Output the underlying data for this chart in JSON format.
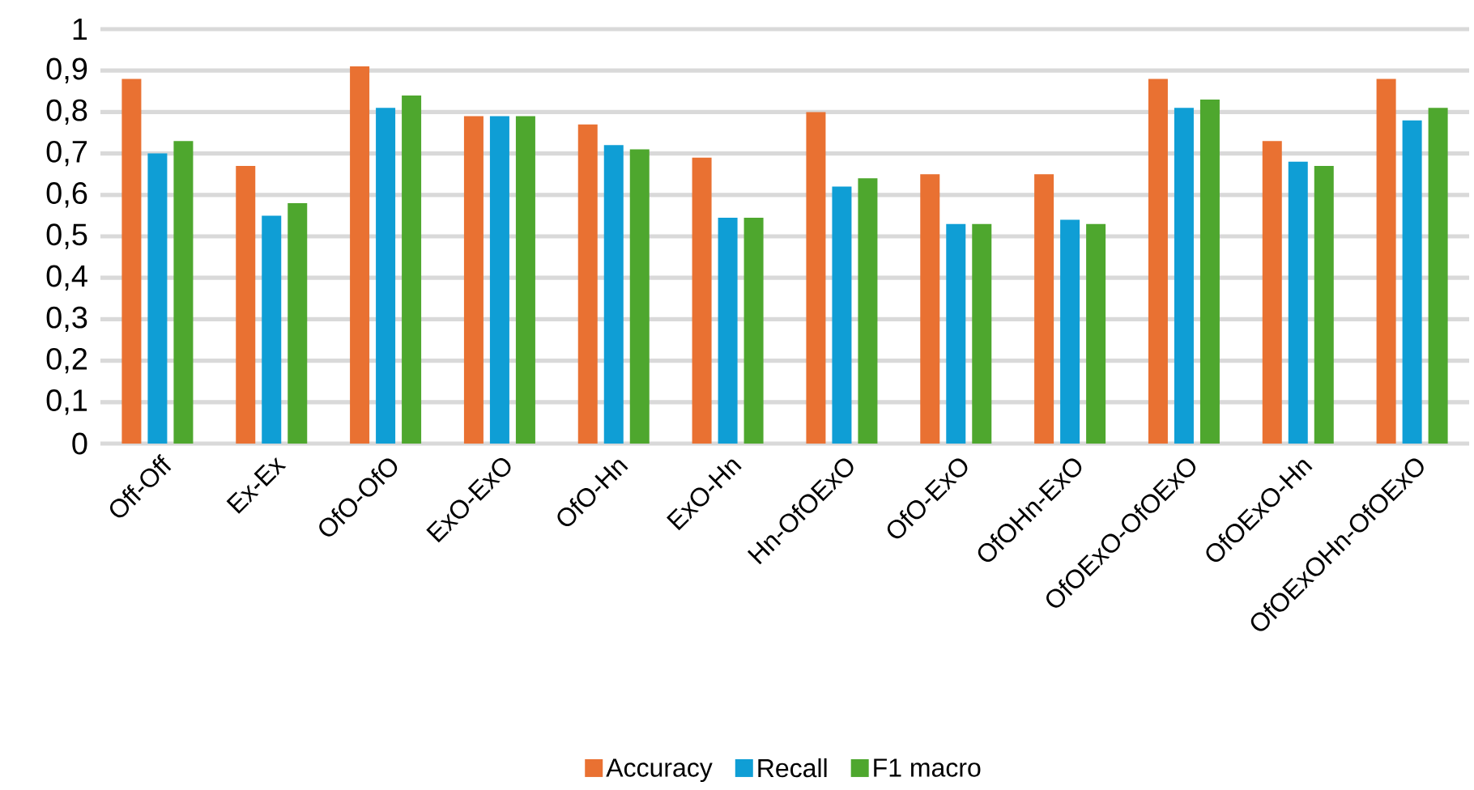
{
  "chart_data": {
    "type": "bar",
    "categories": [
      "Off-Off",
      "Ex-Ex",
      "OfO-OfO",
      "ExO-ExO",
      "OfO-Hn",
      "ExO-Hn",
      "Hn-OfOExO",
      "OfO-ExO",
      "OfOHn-ExO",
      "OfOExO-OfOExO",
      "OfOExO-Hn",
      "OfOExOHn-OfOExO"
    ],
    "series": [
      {
        "name": "Accuracy",
        "color": "#e97132",
        "values": [
          0.88,
          0.67,
          0.91,
          0.79,
          0.77,
          0.69,
          0.8,
          0.65,
          0.65,
          0.88,
          0.73,
          0.88
        ]
      },
      {
        "name": "Recall",
        "color": "#0f9ed5",
        "values": [
          0.7,
          0.55,
          0.81,
          0.79,
          0.72,
          0.545,
          0.62,
          0.53,
          0.54,
          0.81,
          0.68,
          0.78
        ]
      },
      {
        "name": "F1 macro",
        "color": "#4ea72e",
        "values": [
          0.73,
          0.58,
          0.84,
          0.79,
          0.71,
          0.545,
          0.64,
          0.53,
          0.53,
          0.83,
          0.67,
          0.81
        ]
      }
    ],
    "ylim": [
      0,
      1
    ],
    "yticks": [
      0,
      {
        "value": 0.1,
        "label": "0,1"
      },
      {
        "value": 0.2,
        "label": "0,2"
      },
      {
        "value": 0.3,
        "label": "0,3"
      },
      {
        "value": 0.4,
        "label": "0,4"
      },
      {
        "value": 0.5,
        "label": "0,5"
      },
      {
        "value": 0.6,
        "label": "0,6"
      },
      {
        "value": 0.7,
        "label": "0,7"
      },
      {
        "value": 0.8,
        "label": "0,8"
      },
      {
        "value": 0.9,
        "label": "0,9"
      },
      1
    ],
    "grid": "y",
    "legend": "bottom"
  }
}
